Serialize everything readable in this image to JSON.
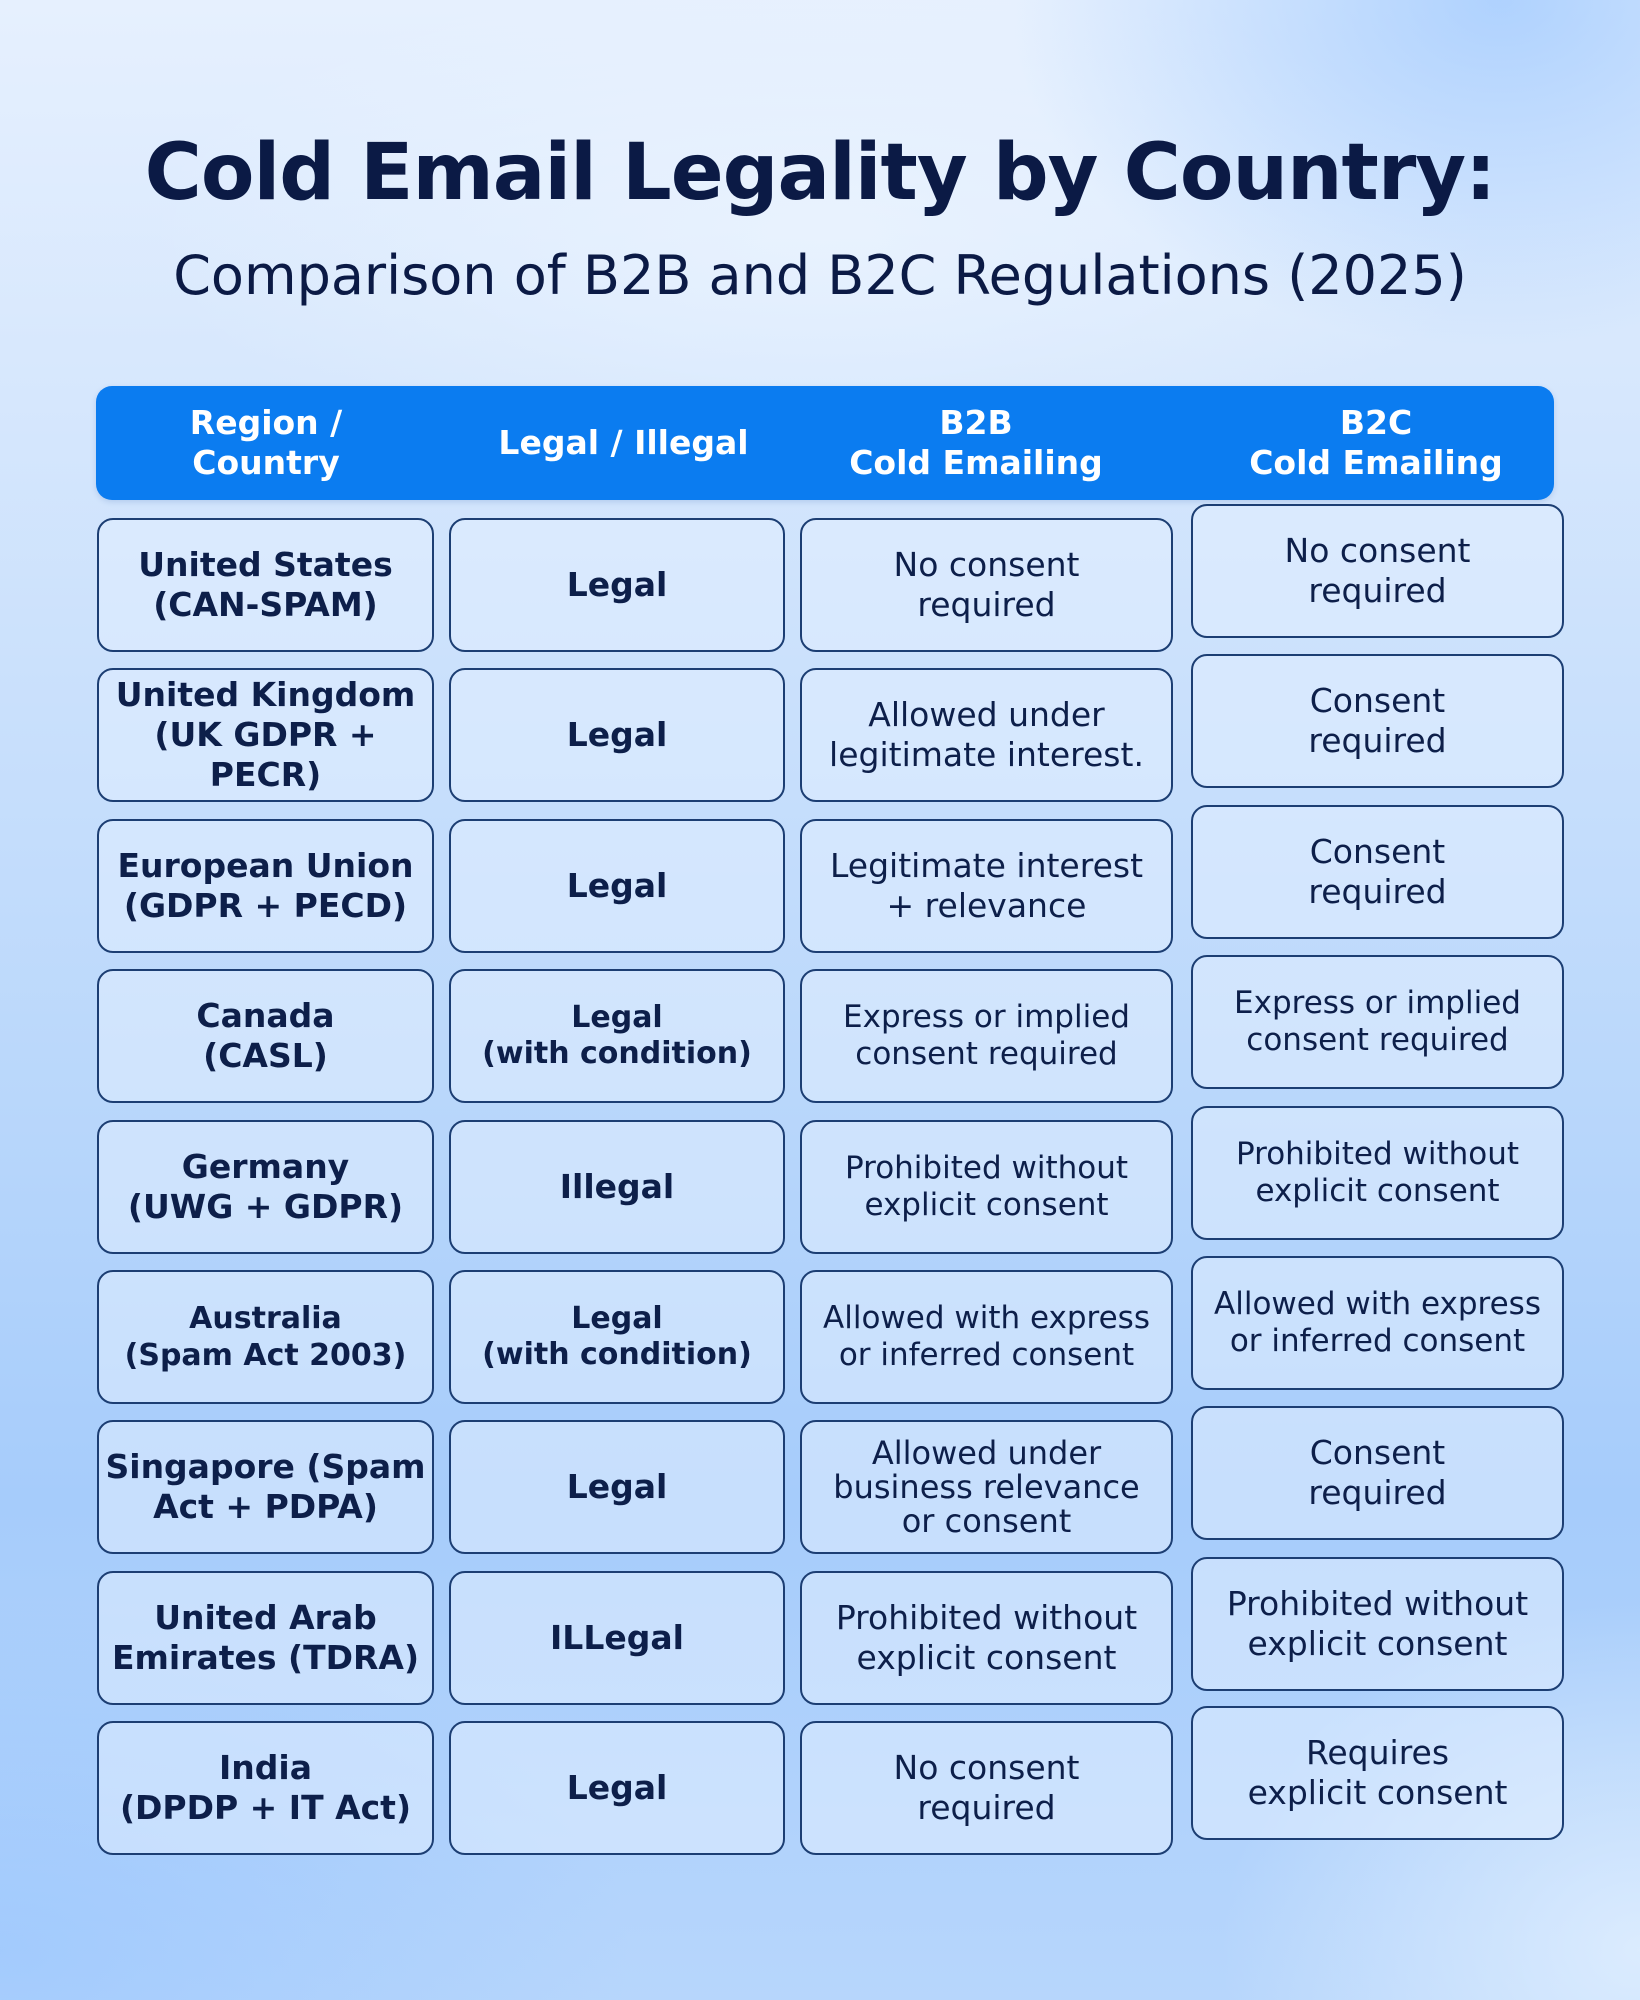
{
  "title": "Cold Email Legality by Country:",
  "subtitle": "Comparison of B2B and B2C Regulations (2025)",
  "headers": {
    "region": "Region /\nCountry",
    "legal": "Legal / Illegal",
    "b2b": "B2B\nCold Emailing",
    "b2c": "B2C\nCold Emailing"
  },
  "rows": [
    {
      "region": "United States\n(CAN-SPAM)",
      "legal": "Legal",
      "b2b": "No consent\nrequired",
      "b2c": "No consent\nrequired"
    },
    {
      "region": "United Kingdom\n(UK GDPR + PECR)",
      "legal": "Legal",
      "b2b": "Allowed under\nlegitimate interest.",
      "b2c": "Consent\nrequired"
    },
    {
      "region": "European Union\n(GDPR + PECD)",
      "legal": "Legal",
      "b2b": "Legitimate interest\n+ relevance",
      "b2c": "Consent\nrequired"
    },
    {
      "region": "Canada\n(CASL)",
      "legal": "Legal\n(with condition)",
      "b2b": "Express or implied\nconsent required",
      "b2c": "Express or implied\nconsent required"
    },
    {
      "region": "Germany\n(UWG + GDPR)",
      "legal": "Illegal",
      "b2b": "Prohibited without\nexplicit consent",
      "b2c": "Prohibited without\nexplicit consent"
    },
    {
      "region": "Australia\n(Spam Act 2003)",
      "legal": "Legal\n(with condition)",
      "b2b": "Allowed with express\nor inferred consent",
      "b2c": "Allowed with express\nor inferred consent"
    },
    {
      "region": "Singapore (Spam\nAct + PDPA)",
      "legal": "Legal",
      "b2b": "Allowed under\nbusiness relevance\nor consent",
      "b2c": "Consent\nrequired"
    },
    {
      "region": "United Arab\nEmirates (TDRA)",
      "legal": "ILLegal",
      "b2b": "Prohibited without\nexplicit consent",
      "b2c": "Prohibited without\nexplicit consent"
    },
    {
      "region": "India\n(DPDP + IT Act)",
      "legal": "Legal",
      "b2b": "No consent\nrequired",
      "b2c": "Requires\nexplicit consent"
    }
  ]
}
